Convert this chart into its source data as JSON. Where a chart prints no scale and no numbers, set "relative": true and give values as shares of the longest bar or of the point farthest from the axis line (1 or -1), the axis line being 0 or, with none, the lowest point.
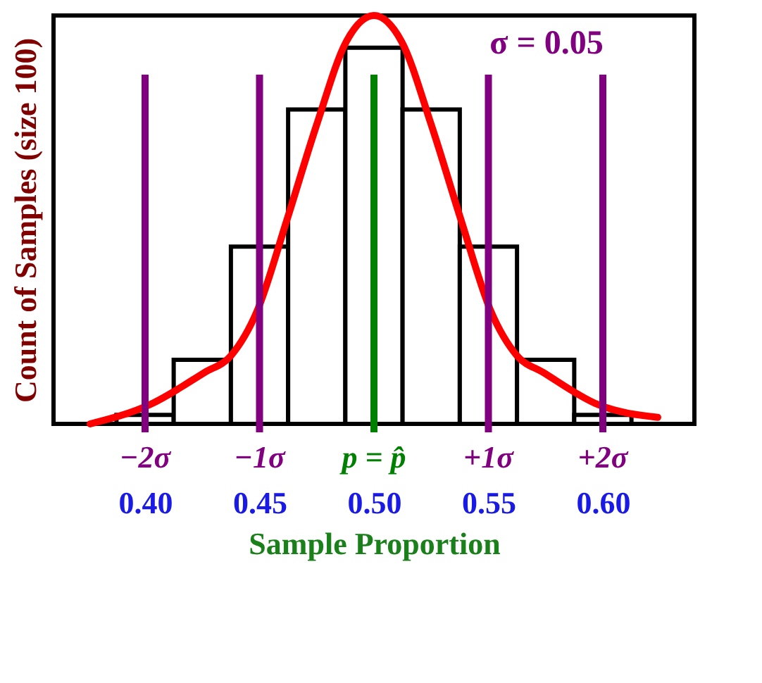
{
  "chart_data": {
    "type": "histogram",
    "relative": true,
    "xlabel": "Sample Proportion",
    "ylabel": "Count of Samples (size 100)",
    "annotations": [
      "σ = 0.05"
    ],
    "bins": [
      0.3875,
      0.4125,
      0.4375,
      0.4625,
      0.4875,
      0.5125,
      0.5375,
      0.5625,
      0.5875,
      0.6125
    ],
    "values": [
      0.022,
      0.157,
      0.434,
      0.77,
      0.921,
      0.77,
      0.434,
      0.157,
      0.022
    ],
    "color": "#ffffff",
    "series": [
      {
        "type": "line",
        "color": "#ff0000",
        "x": [
          0.376,
          0.402,
          0.426,
          0.4375,
          0.449,
          0.462,
          0.475,
          0.488,
          0.5,
          0.512,
          0.525,
          0.538,
          0.551,
          0.5625,
          0.574,
          0.598,
          0.624
        ],
        "values": [
          0,
          0.047,
          0.126,
          0.167,
          0.277,
          0.5,
          0.733,
          0.937,
          1,
          0.937,
          0.733,
          0.5,
          0.277,
          0.167,
          0.126,
          0.047,
          0.016
        ]
      }
    ],
    "xlim": [
      0.36,
      0.64
    ],
    "xticks": [
      {
        "value": 0.4,
        "label": "0.40"
      },
      {
        "value": 0.45,
        "label": "0.45"
      },
      {
        "value": 0.5,
        "label": "0.50"
      },
      {
        "value": 0.55,
        "label": "0.55"
      },
      {
        "value": 0.6,
        "label": "0.60"
      }
    ],
    "ref_lines": [
      {
        "axis": "x",
        "value": 0.4,
        "label": "−2σ",
        "color": "#800080"
      },
      {
        "axis": "x",
        "value": 0.45,
        "label": "−1σ",
        "color": "#800080"
      },
      {
        "axis": "x",
        "value": 0.5,
        "label": "p = p̂",
        "color": "#008000"
      },
      {
        "axis": "x",
        "value": 0.55,
        "label": "+1σ",
        "color": "#800080"
      },
      {
        "axis": "x",
        "value": 0.6,
        "label": "+2σ",
        "color": "#800080"
      }
    ]
  }
}
